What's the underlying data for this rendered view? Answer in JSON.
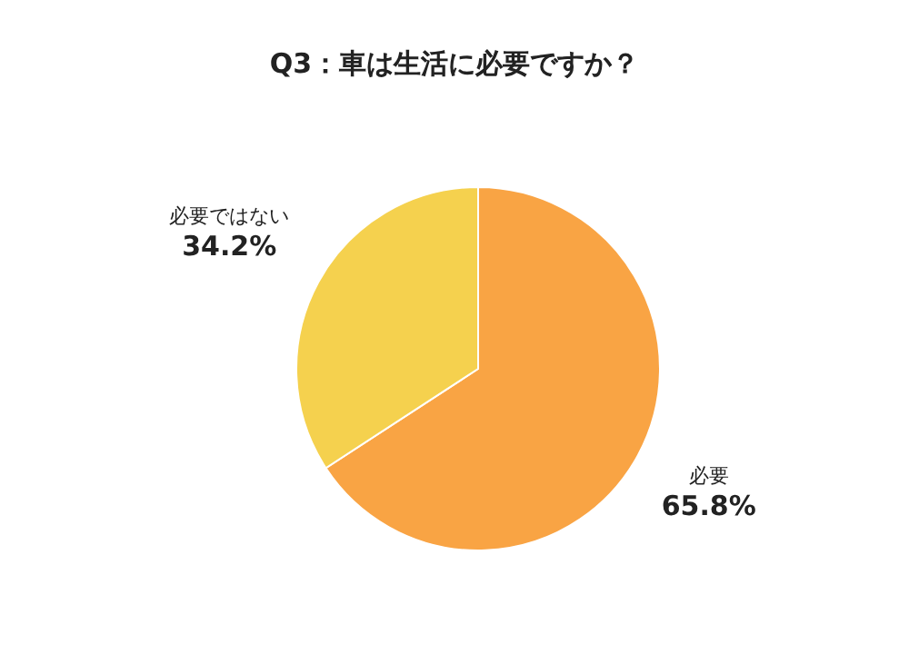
{
  "chart_data": {
    "type": "pie",
    "title": "Q3：車は生活に必要ですか？",
    "categories": [
      "必要",
      "必要ではない"
    ],
    "values": [
      65.8,
      34.2
    ],
    "colors": [
      "#f9a444",
      "#f5d14e"
    ],
    "value_labels": [
      "65.8%",
      "34.2%"
    ],
    "legend": false
  }
}
